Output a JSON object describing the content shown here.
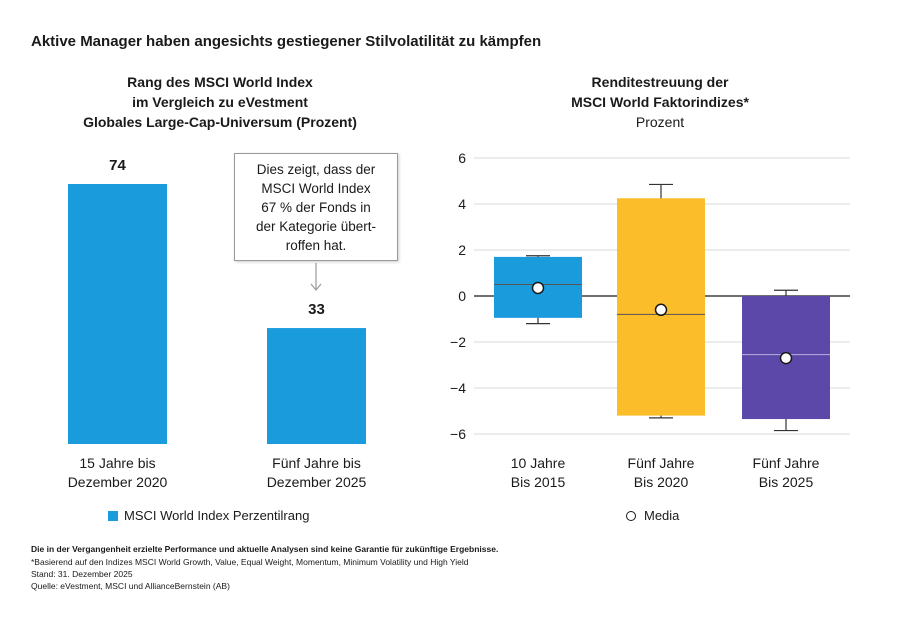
{
  "main_title": "Aktive Manager haben angesichts gestiegener Stilvolatilität zu kämpfen",
  "left_chart": {
    "title_lines": [
      "Rang des MSCI World Index",
      "im Vergleich zu eVestment",
      "Globales Large-Cap-Universum (Prozent)"
    ],
    "annotation": "Dies zeigt, dass der\nMSCI World Index\n67 % der Fonds in\nder Kategorie übert-\nroffen hat.",
    "legend_label": "MSCI World Index Perzentilrang",
    "color": "#1a9bdc"
  },
  "right_chart": {
    "title_lines": [
      "Renditestreuung der",
      "MSCI World Faktorindizes*"
    ],
    "subtitle": "Prozent",
    "legend_label": "Media"
  },
  "chart_data": [
    {
      "type": "bar",
      "categories": [
        [
          "15 Jahre bis",
          "Dezember 2020"
        ],
        [
          "Fünf Jahre bis",
          "Dezember 2025"
        ]
      ],
      "values": [
        74,
        33
      ],
      "ylim": [
        0,
        74
      ],
      "series": [
        {
          "name": "MSCI World Index Perzentilrang",
          "values": [
            74,
            33
          ]
        }
      ]
    },
    {
      "type": "boxplot",
      "categories": [
        [
          "10 Jahre",
          "Bis 2015"
        ],
        [
          "Fünf Jahre",
          "Bis 2020"
        ],
        [
          "Fünf Jahre",
          "Bis 2025"
        ]
      ],
      "y_ticks": [
        "6",
        "4",
        "2",
        "0",
        "−2",
        "−4",
        "−6"
      ],
      "ylim": [
        -6,
        6
      ],
      "grid": true,
      "boxes": [
        {
          "whisker_low": -1.2,
          "q1": -0.95,
          "median": 0.5,
          "q3": 1.7,
          "whisker_high": 1.75,
          "mean": 0.35,
          "color": "#1a9bdc"
        },
        {
          "whisker_low": -5.3,
          "q1": -5.2,
          "median": -0.8,
          "q3": 4.25,
          "whisker_high": 4.85,
          "mean": -0.6,
          "color": "#fcbd2b"
        },
        {
          "whisker_low": -5.85,
          "q1": -5.35,
          "median": -2.55,
          "q3": 0.0,
          "whisker_high": 0.25,
          "mean": -2.7,
          "color": "#5b48a8"
        }
      ],
      "legend": [
        "Media"
      ]
    }
  ],
  "footer": {
    "disclaimer": "Die in der Vergangenheit erzielte Performance und aktuelle Analysen sind keine Garantie für zukünftige Ergebnisse.",
    "note": "*Basierend auf den Indizes MSCI World Growth, Value, Equal Weight, Momentum, Minimum Volatility und High Yield",
    "date": "Stand: 31. Dezember 2025",
    "source": "Quelle: eVestment, MSCI und AllianceBernstein (AB)"
  }
}
